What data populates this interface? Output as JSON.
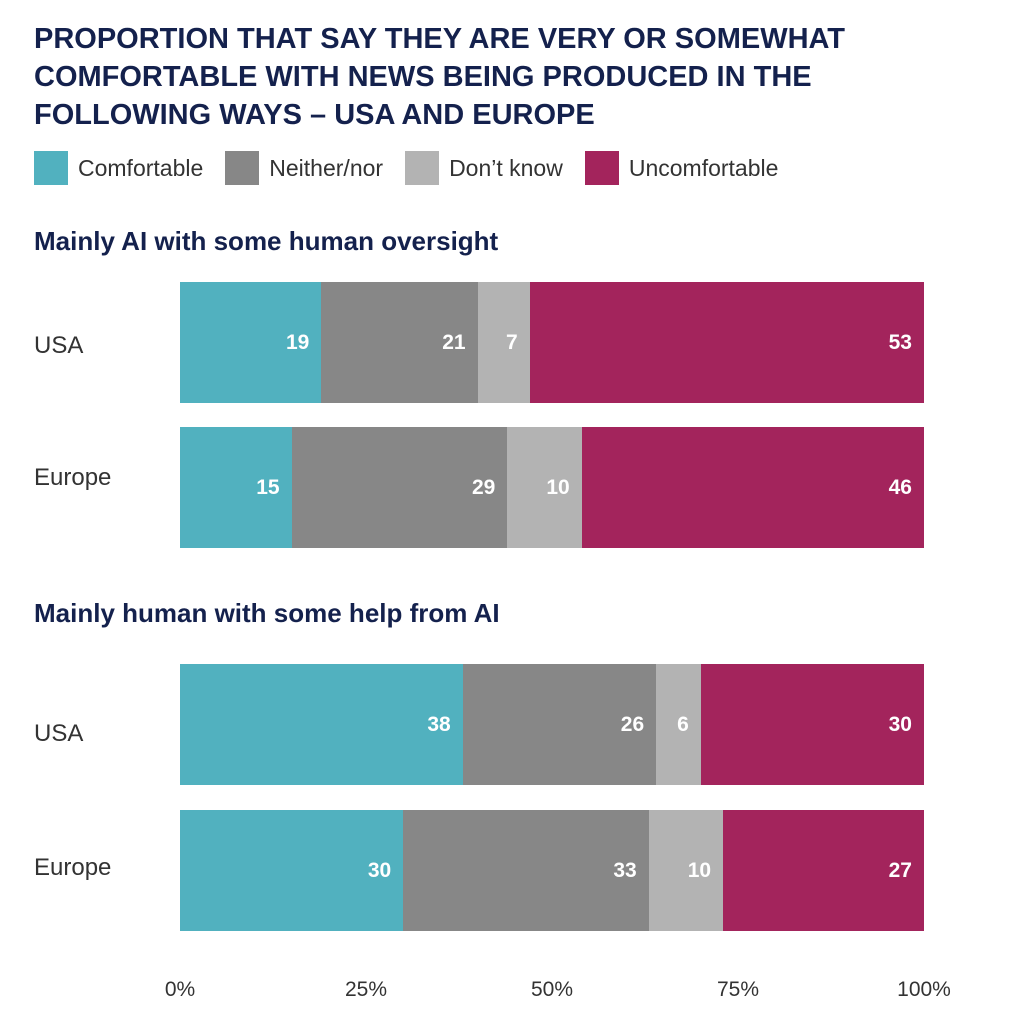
{
  "title": "PROPORTION THAT SAY THEY ARE VERY OR SOMEWHAT COMFORTABLE WITH NEWS BEING PRODUCED IN THE FOLLOWING WAYS – USA AND EUROPE",
  "colors": {
    "comfortable": "#51b1bf",
    "neither": "#878787",
    "dont_know": "#b3b3b3",
    "uncomfortable": "#a3245c"
  },
  "chart_data": {
    "type": "bar",
    "orientation": "horizontal",
    "stacked": true,
    "title": "PROPORTION THAT SAY THEY ARE VERY OR SOMEWHAT COMFORTABLE WITH NEWS BEING PRODUCED IN THE FOLLOWING WAYS – USA AND EUROPE",
    "legend": {
      "placement": "top-left",
      "entries": [
        "Comfortable",
        "Neither/nor",
        "Don’t know",
        "Uncomfortable"
      ]
    },
    "xlim": [
      0,
      100
    ],
    "x_ticks": [
      "0%",
      "25%",
      "50%",
      "75%",
      "100%"
    ],
    "groups": [
      {
        "title": "Mainly AI with some human oversight",
        "rows": [
          {
            "label": "USA",
            "values": [
              19,
              21,
              7,
              53
            ]
          },
          {
            "label": "Europe",
            "values": [
              15,
              29,
              10,
              46
            ]
          }
        ]
      },
      {
        "title": "Mainly human with some help from AI",
        "rows": [
          {
            "label": "USA",
            "values": [
              38,
              26,
              6,
              30
            ]
          },
          {
            "label": "Europe",
            "values": [
              30,
              33,
              10,
              27
            ]
          }
        ]
      }
    ]
  }
}
